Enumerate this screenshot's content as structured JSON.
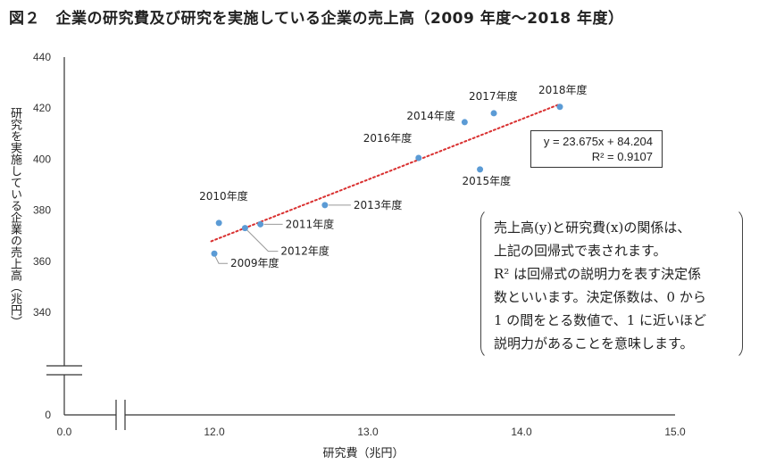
{
  "title": "図２　企業の研究費及び研究を実施している企業の売上高（2009 年度～2018 年度）",
  "chart_data": {
    "type": "scatter",
    "title": "図２　企業の研究費及び研究を実施している企業の売上高（2009 年度～2018 年度）",
    "xlabel": "研究費（兆円）",
    "ylabel": "研究を実施している企業の売上高（兆円）",
    "x_ticks": [
      "0.0",
      "12.0",
      "13.0",
      "14.0",
      "15.0"
    ],
    "y_ticks": [
      "0",
      "340",
      "360",
      "380",
      "400",
      "420",
      "440"
    ],
    "xlim": [
      11.0,
      15.0
    ],
    "ylim": [
      330,
      440
    ],
    "axis_breaks": [
      "x",
      "y"
    ],
    "points": [
      {
        "label": "2009年度",
        "x": 12.0,
        "y": 363
      },
      {
        "label": "2010年度",
        "x": 12.03,
        "y": 375
      },
      {
        "label": "2011年度",
        "x": 12.3,
        "y": 374.5
      },
      {
        "label": "2012年度",
        "x": 12.2,
        "y": 373
      },
      {
        "label": "2013年度",
        "x": 12.72,
        "y": 382
      },
      {
        "label": "2014年度",
        "x": 13.63,
        "y": 414.5
      },
      {
        "label": "2015年度",
        "x": 13.73,
        "y": 396
      },
      {
        "label": "2016年度",
        "x": 13.33,
        "y": 400.5
      },
      {
        "label": "2017年度",
        "x": 13.82,
        "y": 418
      },
      {
        "label": "2018年度",
        "x": 14.25,
        "y": 420.5
      }
    ],
    "trendline": {
      "equation": "y = 23.675x + 84.204",
      "r2": "R² = 0.9107",
      "slope": 23.675,
      "intercept": 84.204,
      "x_range": [
        11.98,
        14.25
      ],
      "style": "dotted",
      "color": "#d93030"
    },
    "point_color": "#5b9bd5"
  },
  "note_lines": [
    "売上高(y)と研究費(x)の関係は、",
    "上記の回帰式で表されます。",
    "R² は回帰式の説明力を表す決定係",
    "数といいます。決定係数は、0 から",
    "1 の間をとる数値で、1 に近いほど",
    "説明力があることを意味します。"
  ]
}
